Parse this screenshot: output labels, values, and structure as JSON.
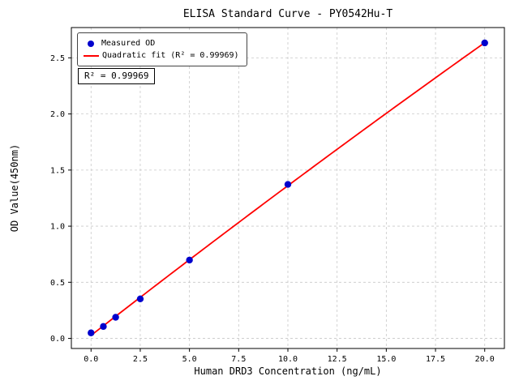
{
  "chart_data": {
    "type": "scatter",
    "title": "ELISA Standard Curve - PY0542Hu-T",
    "xlabel": "Human DRD3 Concentration (ng/mL)",
    "ylabel": "OD Value(450nm)",
    "xlim": [
      -1,
      21
    ],
    "ylim": [
      -0.09,
      2.77
    ],
    "xticks": [
      0.0,
      2.5,
      5.0,
      7.5,
      10.0,
      12.5,
      15.0,
      17.5,
      20.0
    ],
    "yticks": [
      0.0,
      0.5,
      1.0,
      1.5,
      2.0,
      2.5
    ],
    "grid": true,
    "grid_style": "dashed",
    "series": [
      {
        "name": "Measured OD",
        "kind": "scatter",
        "marker": "circle",
        "color": "#0000cd",
        "x": [
          0,
          0.625,
          1.25,
          2.5,
          5,
          10,
          20
        ],
        "y": [
          0.049,
          0.106,
          0.188,
          0.352,
          0.698,
          1.372,
          2.633
        ]
      },
      {
        "name": "Quadratic fit (R² = 0.99969)",
        "kind": "line",
        "fit": "quadratic",
        "color": "#ff0000",
        "x_range": [
          0,
          20
        ]
      }
    ],
    "legend": {
      "position": "upper left",
      "entries": [
        "Measured OD",
        "Quadratic fit (R² = 0.99969)"
      ]
    },
    "annotation": {
      "text": "R² = 0.99969"
    },
    "colors": {
      "points": "#0000cd",
      "fit_line": "#ff0000",
      "grid": "#c8c8c8",
      "axes": "#000000"
    }
  }
}
